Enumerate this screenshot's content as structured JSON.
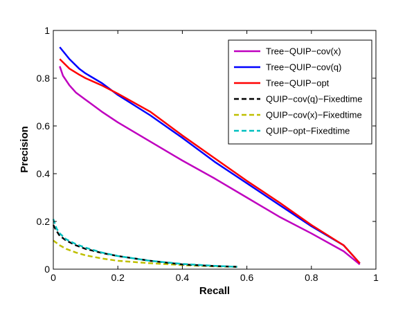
{
  "chart_data": {
    "type": "line",
    "xlabel": "Recall",
    "ylabel": "Precision",
    "xlim": [
      0,
      1
    ],
    "ylim": [
      0,
      1
    ],
    "xticks": [
      0,
      0.2,
      0.4,
      0.6,
      0.8,
      1
    ],
    "yticks": [
      0,
      0.2,
      0.4,
      0.6,
      0.8,
      1
    ],
    "xtick_labels": [
      "0",
      "0.2",
      "0.4",
      "0.6",
      "0.8",
      "1"
    ],
    "ytick_labels": [
      "0",
      "0.2",
      "0.4",
      "0.6",
      "0.8",
      "1"
    ],
    "grid": false,
    "legend_position": "top-right",
    "series": [
      {
        "name": "Tree−QUIP−cov(x)",
        "color": "#bf00bf",
        "dash": "solid",
        "x": [
          0.02,
          0.03,
          0.05,
          0.07,
          0.1,
          0.15,
          0.2,
          0.3,
          0.4,
          0.5,
          0.6,
          0.7,
          0.8,
          0.9,
          0.95
        ],
        "y": [
          0.85,
          0.81,
          0.77,
          0.74,
          0.71,
          0.66,
          0.615,
          0.535,
          0.455,
          0.38,
          0.3,
          0.22,
          0.15,
          0.075,
          0.02
        ]
      },
      {
        "name": "Tree−QUIP−cov(q)",
        "color": "#0000ff",
        "dash": "solid",
        "x": [
          0.02,
          0.05,
          0.08,
          0.1,
          0.15,
          0.2,
          0.3,
          0.4,
          0.5,
          0.6,
          0.7,
          0.8,
          0.9,
          0.95
        ],
        "y": [
          0.93,
          0.88,
          0.84,
          0.82,
          0.78,
          0.73,
          0.645,
          0.55,
          0.45,
          0.36,
          0.27,
          0.18,
          0.1,
          0.025
        ]
      },
      {
        "name": "Tree−QUIP−opt",
        "color": "#ff0000",
        "dash": "solid",
        "x": [
          0.02,
          0.05,
          0.08,
          0.1,
          0.15,
          0.2,
          0.3,
          0.4,
          0.5,
          0.6,
          0.7,
          0.8,
          0.9,
          0.95
        ],
        "y": [
          0.88,
          0.84,
          0.815,
          0.8,
          0.77,
          0.735,
          0.66,
          0.56,
          0.465,
          0.37,
          0.28,
          0.185,
          0.1,
          0.025
        ]
      },
      {
        "name": "QUIP−cov(q)−Fixedtime",
        "color": "#000000",
        "dash": "dashed",
        "x": [
          0.0,
          0.01,
          0.02,
          0.04,
          0.07,
          0.1,
          0.15,
          0.2,
          0.3,
          0.4,
          0.5,
          0.57
        ],
        "y": [
          0.185,
          0.16,
          0.14,
          0.12,
          0.1,
          0.085,
          0.068,
          0.055,
          0.035,
          0.02,
          0.013,
          0.01
        ]
      },
      {
        "name": "QUIP−cov(x)−Fixedtime",
        "color": "#bfbf00",
        "dash": "dashed",
        "x": [
          0.0,
          0.02,
          0.04,
          0.07,
          0.1,
          0.15,
          0.2,
          0.3,
          0.4,
          0.5,
          0.57
        ],
        "y": [
          0.12,
          0.1,
          0.085,
          0.07,
          0.058,
          0.045,
          0.035,
          0.025,
          0.017,
          0.012,
          0.01
        ]
      },
      {
        "name": "QUIP−opt−Fixedtime",
        "color": "#00bfbf",
        "dash": "dashed",
        "x": [
          0.0,
          0.01,
          0.02,
          0.04,
          0.07,
          0.1,
          0.15,
          0.2,
          0.3,
          0.4,
          0.5,
          0.57
        ],
        "y": [
          0.21,
          0.17,
          0.15,
          0.125,
          0.105,
          0.09,
          0.07,
          0.055,
          0.035,
          0.022,
          0.014,
          0.01
        ]
      }
    ]
  }
}
